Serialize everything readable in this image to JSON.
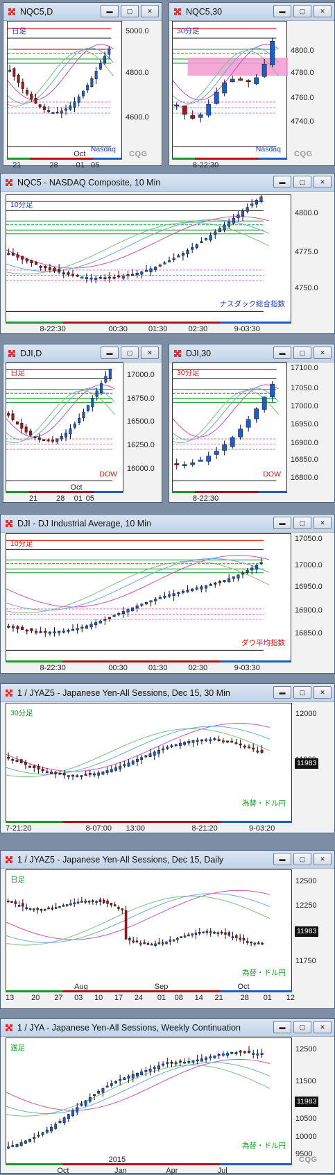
{
  "colors": {
    "up": "#1c5ec9",
    "down": "#a8151b",
    "red_line": "#e11111",
    "black_line": "#111111",
    "green_line": "#0a9a2a",
    "pink_line": "#e070c0",
    "band": "#f29ad2",
    "ma_pink": "#d050b0",
    "ma_green": "#7fbf7f"
  },
  "title_buttons": [
    "minimize-icon",
    "maximize-icon",
    "close-icon"
  ],
  "windows": [
    {
      "title": "NQC5,D",
      "tag": "日足",
      "tag_color": "#1a3cd0",
      "source": "Nasdaq",
      "source_color": "#1a3cd0",
      "y_ticks": [
        "5000.0",
        "4800.0",
        "4600.0"
      ],
      "x_ticks": [
        "21",
        "28",
        "Oct",
        "01",
        "05"
      ],
      "badge": "",
      "cqg": true
    },
    {
      "title": "NQC5,30",
      "tag": "30分足",
      "tag_color": "#1a3cd0",
      "source": "Nasdaq",
      "source_color": "#1a3cd0",
      "y_ticks": [
        "4800.0",
        "4780.0",
        "4760.0",
        "4740.0"
      ],
      "x_ticks": [
        "8-22:30"
      ],
      "badge": "",
      "cqg": true
    },
    {
      "title": "NQC5 - NASDAQ Composite, 10 Min",
      "tag": "10分足",
      "tag_color": "#1a3cd0",
      "source": "ナスダック総合指数",
      "source_color": "#1a3cd0",
      "y_ticks": [
        "4800.0",
        "4775.0",
        "4750.0"
      ],
      "x_ticks": [
        "8-22:30",
        "00:30",
        "01:30",
        "02:30",
        "9-03:30"
      ],
      "badge": "",
      "cqg": false
    },
    {
      "title": "DJI,D",
      "tag": "日足",
      "tag_color": "#e11111",
      "source": "DOW",
      "source_color": "#e11111",
      "y_ticks": [
        "17000.0",
        "16750.0",
        "16500.0",
        "16250.0",
        "16000.0"
      ],
      "x_ticks": [
        "21",
        "28",
        "01",
        "05",
        "Oct"
      ],
      "badge": "",
      "cqg": false
    },
    {
      "title": "DJI,30",
      "tag": "30分足",
      "tag_color": "#e11111",
      "source": "DOW",
      "source_color": "#e11111",
      "y_ticks": [
        "17100.0",
        "17050.0",
        "17000.0",
        "16950.0",
        "16900.0",
        "16850.0",
        "16800.0"
      ],
      "x_ticks": [
        "8-22:30"
      ],
      "badge": "",
      "cqg": false
    },
    {
      "title": "DJI - DJ Industrial Average, 10 Min",
      "tag": "10分足",
      "tag_color": "#e11111",
      "source": "ダウ平均指数",
      "source_color": "#e11111",
      "y_ticks": [
        "17050.0",
        "17000.0",
        "16950.0",
        "16900.0",
        "16850.0"
      ],
      "x_ticks": [
        "8-22:30",
        "00:30",
        "01:30",
        "02:30",
        "9-03:30"
      ],
      "badge": "",
      "cqg": false
    },
    {
      "title": "1 / JYAZ5 - Japanese Yen-All Sessions, Dec 15, 30 Min",
      "tag": "30分足",
      "tag_color": "#1a9a2a",
      "source": "為替・ドル円",
      "source_color": "#1a9a2a",
      "y_ticks": [
        "12000",
        "11960"
      ],
      "x_ticks": [
        "7-21:20",
        "8-07:00",
        "13:00",
        "8-21:20",
        "9-03:20"
      ],
      "badge": "11983",
      "cqg": false
    },
    {
      "title": "1 / JYAZ5 - Japanese Yen-All Sessions, Dec 15, Daily",
      "tag": "日足",
      "tag_color": "#1a9a2a",
      "source": "為替・ドル円",
      "source_color": "#1a9a2a",
      "y_ticks": [
        "12500",
        "12250",
        "11750"
      ],
      "x_ticks": [
        "13",
        "20",
        "27",
        "03",
        "10",
        "17",
        "24",
        "01",
        "08",
        "14",
        "21",
        "28",
        "01",
        "12"
      ],
      "x_top": [
        "Aug",
        "Sep",
        "Oct"
      ],
      "badge": "11983",
      "cqg": false
    },
    {
      "title": "1 / JYA - Japanese Yen-All Sessions, Weekly Continuation",
      "tag": "週足",
      "tag_color": "#1a9a2a",
      "source": "為替・ドル円",
      "source_color": "#1a9a2a",
      "y_ticks": [
        "12500",
        "11500",
        "11000",
        "10500",
        "10000",
        "9500"
      ],
      "x_ticks": [
        "Oct",
        "Jan",
        "Apr",
        "Jul"
      ],
      "x_extra": "2015",
      "badge": "11983",
      "cqg": true
    }
  ]
}
